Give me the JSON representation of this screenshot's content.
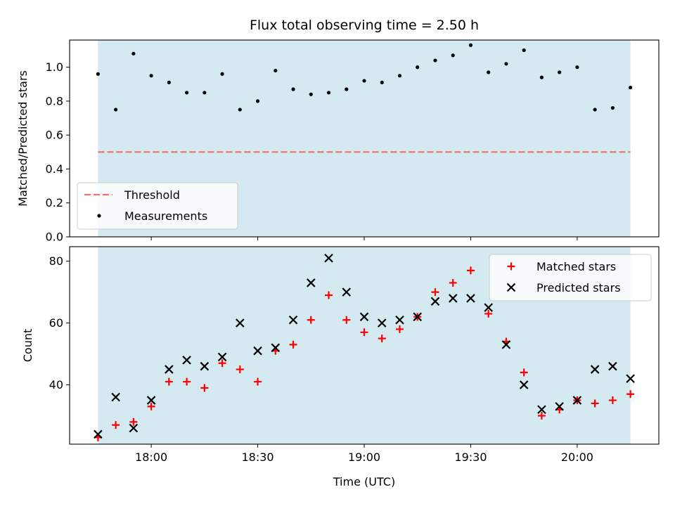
{
  "chart_data": [
    {
      "type": "scatter",
      "title": "Flux total observing time = 2.50 h",
      "xlabel": "",
      "ylabel": "Matched/Predicted stars",
      "ylim": [
        0,
        1.16
      ],
      "yticks": [
        "0.0",
        "0.2",
        "0.4",
        "0.6",
        "0.8",
        "1.0"
      ],
      "shaded_span": [
        "17:45",
        "20:15"
      ],
      "shade_color": "#d4eaf0",
      "threshold": {
        "name": "Threshold",
        "value": 0.5,
        "x_range": [
          "17:45",
          "20:15"
        ],
        "color": "#f07070"
      },
      "series": [
        {
          "name": "Measurements",
          "color": "#000000",
          "marker": "dot",
          "x": [
            "17:45",
            "17:50",
            "17:55",
            "18:00",
            "18:05",
            "18:10",
            "18:15",
            "18:20",
            "18:25",
            "18:30",
            "18:35",
            "18:40",
            "18:45",
            "18:50",
            "18:55",
            "19:00",
            "19:05",
            "19:10",
            "19:15",
            "19:20",
            "19:25",
            "19:30",
            "19:35",
            "19:40",
            "19:45",
            "19:50",
            "19:55",
            "20:00",
            "20:05",
            "20:10",
            "20:15"
          ],
          "y": [
            0.96,
            0.75,
            1.08,
            0.95,
            0.91,
            0.85,
            0.85,
            0.96,
            0.75,
            0.8,
            0.98,
            0.87,
            0.84,
            0.85,
            0.87,
            0.92,
            0.91,
            0.95,
            1.0,
            1.04,
            1.07,
            1.13,
            0.97,
            1.02,
            1.1,
            0.94,
            0.97,
            1.0,
            0.75,
            0.76,
            0.88
          ]
        }
      ],
      "legend": {
        "placement": "lower-left",
        "entries": [
          "Threshold",
          "Measurements"
        ]
      }
    },
    {
      "type": "scatter",
      "title": "",
      "xlabel": "Time (UTC)",
      "ylabel": "Count",
      "ylim": [
        20.8,
        84.7
      ],
      "yticks": [
        "40",
        "60",
        "80"
      ],
      "xticks": [
        "18:00",
        "18:30",
        "19:00",
        "19:30",
        "20:00"
      ],
      "xlim": [
        "17:37",
        "20:23"
      ],
      "shaded_span": [
        "17:45",
        "20:15"
      ],
      "shade_color": "#d4eaf0",
      "series": [
        {
          "name": "Matched stars",
          "color": "#ff0000",
          "marker": "plus",
          "x": [
            "17:45",
            "17:50",
            "17:55",
            "18:00",
            "18:05",
            "18:10",
            "18:15",
            "18:20",
            "18:25",
            "18:30",
            "18:35",
            "18:40",
            "18:45",
            "18:50",
            "18:55",
            "19:00",
            "19:05",
            "19:10",
            "19:15",
            "19:20",
            "19:25",
            "19:30",
            "19:35",
            "19:40",
            "19:45",
            "19:50",
            "19:55",
            "20:00",
            "20:05",
            "20:10",
            "20:15"
          ],
          "y": [
            23,
            27,
            28,
            33,
            41,
            41,
            39,
            47,
            45,
            41,
            51,
            53,
            61,
            69,
            61,
            57,
            55,
            58,
            62,
            70,
            73,
            77,
            63,
            54,
            44,
            30,
            32,
            35,
            34,
            35,
            37
          ]
        },
        {
          "name": "Predicted stars",
          "color": "#000000",
          "marker": "x",
          "x": [
            "17:45",
            "17:50",
            "17:55",
            "18:00",
            "18:05",
            "18:10",
            "18:15",
            "18:20",
            "18:25",
            "18:30",
            "18:35",
            "18:40",
            "18:45",
            "18:50",
            "18:55",
            "19:00",
            "19:05",
            "19:10",
            "19:15",
            "19:20",
            "19:25",
            "19:30",
            "19:35",
            "19:40",
            "19:45",
            "19:50",
            "19:55",
            "20:00",
            "20:05",
            "20:10",
            "20:15"
          ],
          "y": [
            24,
            36,
            26,
            35,
            45,
            48,
            46,
            49,
            60,
            51,
            52,
            61,
            73,
            81,
            70,
            62,
            60,
            61,
            62,
            67,
            68,
            68,
            65,
            53,
            40,
            32,
            33,
            35,
            45,
            46,
            42
          ]
        }
      ],
      "legend": {
        "placement": "upper-right",
        "entries": [
          "Matched stars",
          "Predicted stars"
        ]
      }
    }
  ]
}
